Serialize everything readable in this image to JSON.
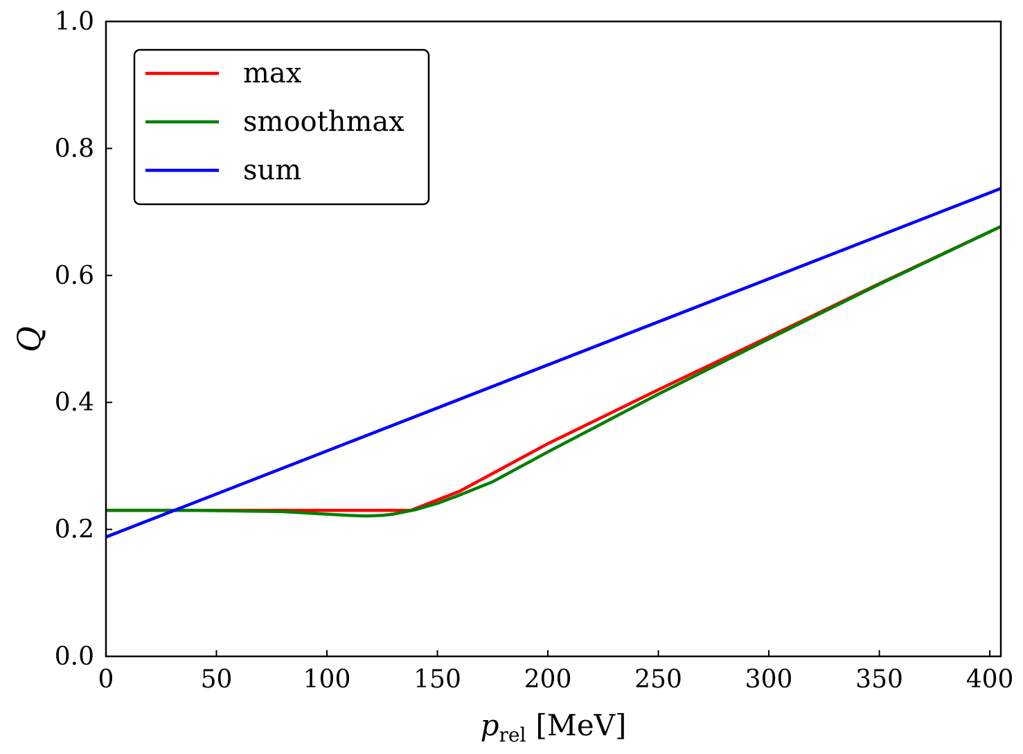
{
  "chart_data": {
    "type": "line",
    "title": "",
    "xlabel": {
      "main": "p",
      "sub": "rel",
      "unit": "[MeV]"
    },
    "ylabel": "Q",
    "xlim": [
      0,
      405
    ],
    "ylim": [
      0.0,
      1.0
    ],
    "xticks": [
      0,
      50,
      100,
      150,
      200,
      250,
      300,
      350,
      400
    ],
    "xtick_labels": [
      "0",
      "50",
      "100",
      "150",
      "200",
      "250",
      "300",
      "350",
      "400"
    ],
    "yticks": [
      0.0,
      0.2,
      0.4,
      0.6,
      0.8,
      1.0
    ],
    "ytick_labels": [
      "0.0",
      "0.2",
      "0.4",
      "0.6",
      "0.8",
      "1.0"
    ],
    "grid": false,
    "legend_position": "top-left",
    "series": [
      {
        "name": "max",
        "color": "#ff0000",
        "x": [
          0,
          30,
          60,
          90,
          120,
          138,
          160,
          200,
          250,
          300,
          350,
          405
        ],
        "y": [
          0.23,
          0.23,
          0.23,
          0.23,
          0.23,
          0.23,
          0.26,
          0.335,
          0.42,
          0.503,
          0.587,
          0.677
        ]
      },
      {
        "name": "smoothmax",
        "color": "#008000",
        "x": [
          0,
          20,
          40,
          60,
          80,
          100,
          110,
          118,
          125,
          130,
          140,
          150,
          160,
          175,
          200,
          250,
          300,
          350,
          405
        ],
        "y": [
          0.23,
          0.23,
          0.23,
          0.229,
          0.228,
          0.224,
          0.222,
          0.221,
          0.222,
          0.224,
          0.231,
          0.241,
          0.254,
          0.275,
          0.322,
          0.413,
          0.5,
          0.586,
          0.677
        ]
      },
      {
        "name": "sum",
        "color": "#0000ff",
        "x": [
          0,
          405
        ],
        "y": [
          0.188,
          0.737
        ]
      }
    ]
  }
}
